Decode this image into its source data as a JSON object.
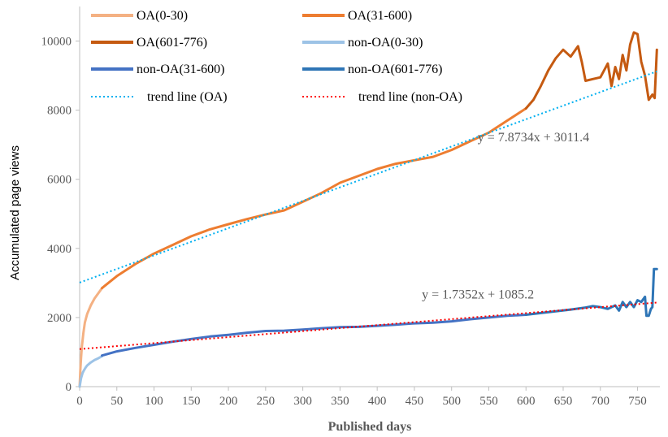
{
  "chart_data": {
    "type": "line",
    "xlabel": "Published days",
    "ylabel": "Accumulated page views",
    "xlim": [
      0,
      780
    ],
    "ylim": [
      0,
      11000
    ],
    "xticks": [
      0,
      50,
      100,
      150,
      200,
      250,
      300,
      350,
      400,
      450,
      500,
      550,
      600,
      650,
      700,
      750
    ],
    "yticks": [
      0,
      2000,
      4000,
      6000,
      8000,
      10000
    ],
    "grid": false,
    "legend_position": "top",
    "series": [
      {
        "name": "OA(0-30)",
        "color": "#f4b183",
        "width": 3,
        "x": [
          0,
          1,
          2,
          3,
          5,
          7,
          10,
          15,
          20,
          25,
          30
        ],
        "y": [
          0,
          500,
          850,
          1150,
          1550,
          1850,
          2100,
          2350,
          2550,
          2700,
          2850
        ]
      },
      {
        "name": "OA(31-600)",
        "color": "#ed7d31",
        "width": 3,
        "x": [
          30,
          50,
          75,
          100,
          125,
          150,
          175,
          200,
          225,
          250,
          275,
          300,
          325,
          350,
          375,
          400,
          425,
          450,
          475,
          500,
          525,
          550,
          575,
          600
        ],
        "y": [
          2850,
          3200,
          3550,
          3850,
          4100,
          4350,
          4550,
          4700,
          4850,
          4980,
          5100,
          5350,
          5600,
          5900,
          6100,
          6300,
          6450,
          6550,
          6650,
          6850,
          7100,
          7350,
          7700,
          8050
        ]
      },
      {
        "name": "OA(601-776)",
        "color": "#c55a11",
        "width": 3,
        "x": [
          600,
          610,
          620,
          630,
          640,
          650,
          660,
          670,
          675,
          680,
          690,
          700,
          710,
          715,
          720,
          725,
          730,
          735,
          740,
          745,
          750,
          755,
          760,
          765,
          770,
          773,
          776
        ],
        "y": [
          8050,
          8300,
          8700,
          9150,
          9500,
          9750,
          9550,
          9850,
          9400,
          8850,
          8900,
          8950,
          9350,
          8700,
          9250,
          8900,
          9600,
          9150,
          9900,
          10250,
          10200,
          9400,
          9000,
          8300,
          8450,
          8350,
          9750
        ]
      },
      {
        "name": "non-OA(0-30)",
        "color": "#9dc3e6",
        "width": 3,
        "x": [
          0,
          2,
          4,
          6,
          8,
          10,
          15,
          20,
          25,
          30
        ],
        "y": [
          0,
          250,
          400,
          480,
          550,
          610,
          700,
          770,
          820,
          880
        ]
      },
      {
        "name": "non-OA(31-600)",
        "color": "#4472c4",
        "width": 3,
        "x": [
          30,
          50,
          75,
          100,
          125,
          150,
          175,
          200,
          225,
          250,
          275,
          300,
          325,
          350,
          375,
          400,
          425,
          450,
          475,
          500,
          525,
          550,
          575,
          600
        ],
        "y": [
          900,
          1020,
          1120,
          1210,
          1300,
          1380,
          1450,
          1500,
          1560,
          1610,
          1620,
          1650,
          1690,
          1720,
          1730,
          1760,
          1790,
          1830,
          1850,
          1890,
          1950,
          2000,
          2050,
          2080
        ]
      },
      {
        "name": "non-OA(601-776)",
        "color": "#2e75b6",
        "width": 3,
        "x": [
          600,
          620,
          640,
          660,
          680,
          690,
          700,
          710,
          720,
          725,
          730,
          735,
          740,
          745,
          750,
          755,
          760,
          762,
          765,
          768,
          770,
          772,
          776
        ],
        "y": [
          2080,
          2130,
          2180,
          2230,
          2290,
          2330,
          2300,
          2250,
          2350,
          2200,
          2450,
          2300,
          2450,
          2300,
          2500,
          2450,
          2600,
          2050,
          2050,
          2250,
          2300,
          3400,
          3400
        ]
      },
      {
        "name": "trend line (OA)",
        "color": "#00b0f0",
        "width": 2,
        "dash": "dotted",
        "x": [
          0,
          776
        ],
        "y": [
          3011.4,
          9121.2
        ]
      },
      {
        "name": "trend line (non-OA)",
        "color": "#ff0000",
        "width": 2,
        "dash": "dotted",
        "x": [
          0,
          776
        ],
        "y": [
          1085.2,
          2431.7
        ]
      }
    ],
    "annotations": [
      {
        "text": "y = 7.8734x + 3011.4",
        "x": 535,
        "y": 7100
      },
      {
        "text": "y = 1.7352x + 1085.2",
        "x": 460,
        "y": 2550
      }
    ]
  }
}
